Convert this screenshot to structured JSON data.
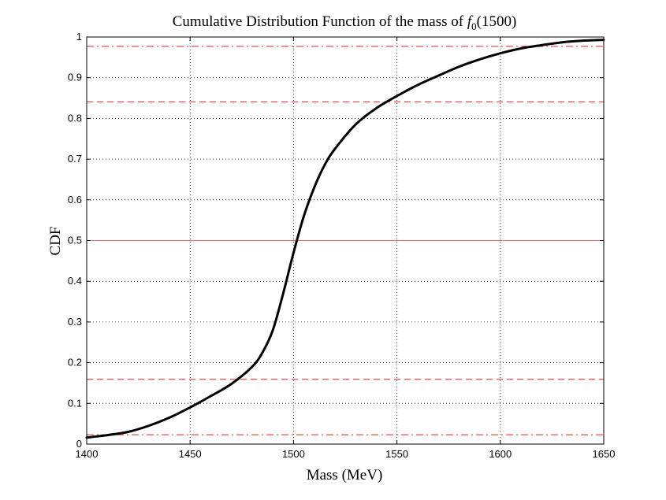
{
  "chart_data": {
    "type": "line",
    "title_prefix": "Cumulative Distribution Function of the mass of ",
    "title_symbol": "f",
    "title_subscript": "0",
    "title_suffix": "(1500)",
    "xlabel": "Mass (MeV)",
    "ylabel": "CDF",
    "xlim": [
      1400,
      1650
    ],
    "ylim": [
      0,
      1
    ],
    "grid": true,
    "x_ticks": [
      "1400",
      "1450",
      "1500",
      "1550",
      "1600",
      "1650"
    ],
    "y_ticks": [
      "0",
      "0.1",
      "0.2",
      "0.3",
      "0.4",
      "0.5",
      "0.6",
      "0.7",
      "0.8",
      "0.9",
      "1"
    ],
    "series": [
      {
        "name": "CDF",
        "color": "#000000",
        "x": [
          1400,
          1410,
          1420,
          1430,
          1440,
          1450,
          1460,
          1470,
          1480,
          1485,
          1490,
          1495,
          1500,
          1505,
          1510,
          1515,
          1520,
          1530,
          1540,
          1550,
          1560,
          1570,
          1580,
          1590,
          1600,
          1610,
          1620,
          1630,
          1640,
          1650
        ],
        "y": [
          0.016,
          0.022,
          0.03,
          0.045,
          0.065,
          0.09,
          0.118,
          0.148,
          0.19,
          0.225,
          0.28,
          0.37,
          0.47,
          0.56,
          0.63,
          0.685,
          0.725,
          0.785,
          0.825,
          0.855,
          0.882,
          0.905,
          0.927,
          0.945,
          0.96,
          0.972,
          0.98,
          0.987,
          0.991,
          0.993
        ]
      }
    ],
    "reference_lines": [
      {
        "y": 0.5,
        "style": "solid",
        "color": "#e36a6a"
      },
      {
        "y": 0.159,
        "style": "dashed",
        "color": "#e02020"
      },
      {
        "y": 0.841,
        "style": "dashed",
        "color": "#e02020"
      },
      {
        "y": 0.023,
        "style": "dashdot",
        "color": "#e02020"
      },
      {
        "y": 0.977,
        "style": "dashdot",
        "color": "#e02020"
      }
    ]
  }
}
